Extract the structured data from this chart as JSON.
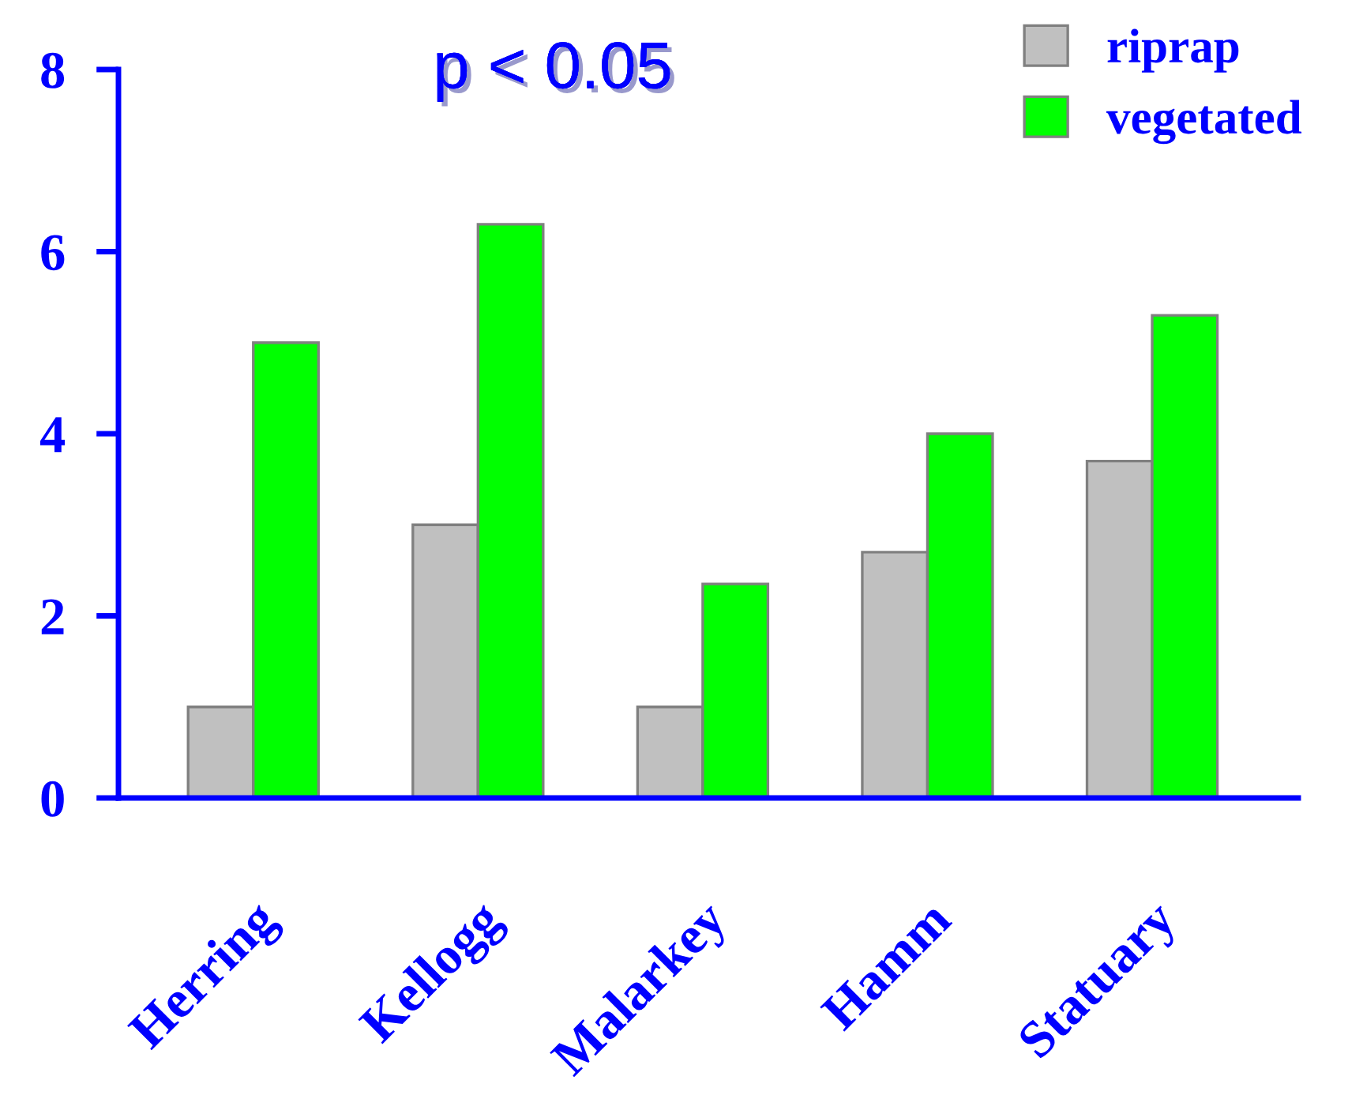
{
  "chart_data": {
    "type": "bar",
    "categories": [
      "Herring",
      "Kellogg",
      "Malarkey",
      "Hamm",
      "Statuary"
    ],
    "series": [
      {
        "name": "riprap",
        "color": "#c0c0c0",
        "values": [
          1.0,
          3.0,
          1.0,
          2.7,
          3.7
        ]
      },
      {
        "name": "vegetated",
        "color": "#00ff00",
        "values": [
          5.0,
          6.3,
          2.35,
          4.0,
          5.3
        ]
      }
    ],
    "ylim": [
      0,
      8
    ],
    "yticks": [
      0,
      2,
      4,
      6,
      8
    ],
    "annotations": [
      "p < 0.05"
    ],
    "legend": "top right",
    "grid": false
  }
}
